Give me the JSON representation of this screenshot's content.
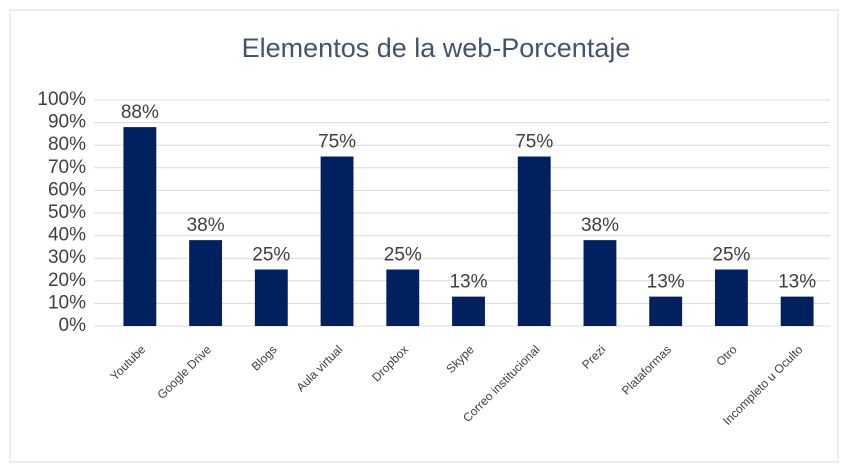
{
  "chart_data": {
    "type": "bar",
    "title": "Elementos de la web-Porcentaje",
    "categories": [
      "Youtube",
      "Google Drive",
      "Blogs",
      "Aula virtual",
      "Dropbox",
      "Skype",
      "Correo institucional",
      "Prezi",
      "Plataformas",
      "Otro",
      "Incompleto u Oculto"
    ],
    "values": [
      88,
      38,
      25,
      75,
      25,
      13,
      75,
      38,
      13,
      25,
      13
    ],
    "value_labels": [
      "88%",
      "38%",
      "25%",
      "75%",
      "25%",
      "13%",
      "75%",
      "38%",
      "13%",
      "25%",
      "13%"
    ],
    "color": "#002060",
    "ylim": [
      0,
      100
    ],
    "yticks": [
      {
        "value": 0,
        "label": "0%"
      },
      {
        "value": 10,
        "label": "10%"
      },
      {
        "value": 20,
        "label": "20%"
      },
      {
        "value": 30,
        "label": "30%"
      },
      {
        "value": 40,
        "label": "40%"
      },
      {
        "value": 50,
        "label": "50%"
      },
      {
        "value": 60,
        "label": "60%"
      },
      {
        "value": 70,
        "label": "70%"
      },
      {
        "value": 80,
        "label": "80%"
      },
      {
        "value": 90,
        "label": "90%"
      },
      {
        "value": 100,
        "label": "100%"
      }
    ],
    "grid": true
  }
}
